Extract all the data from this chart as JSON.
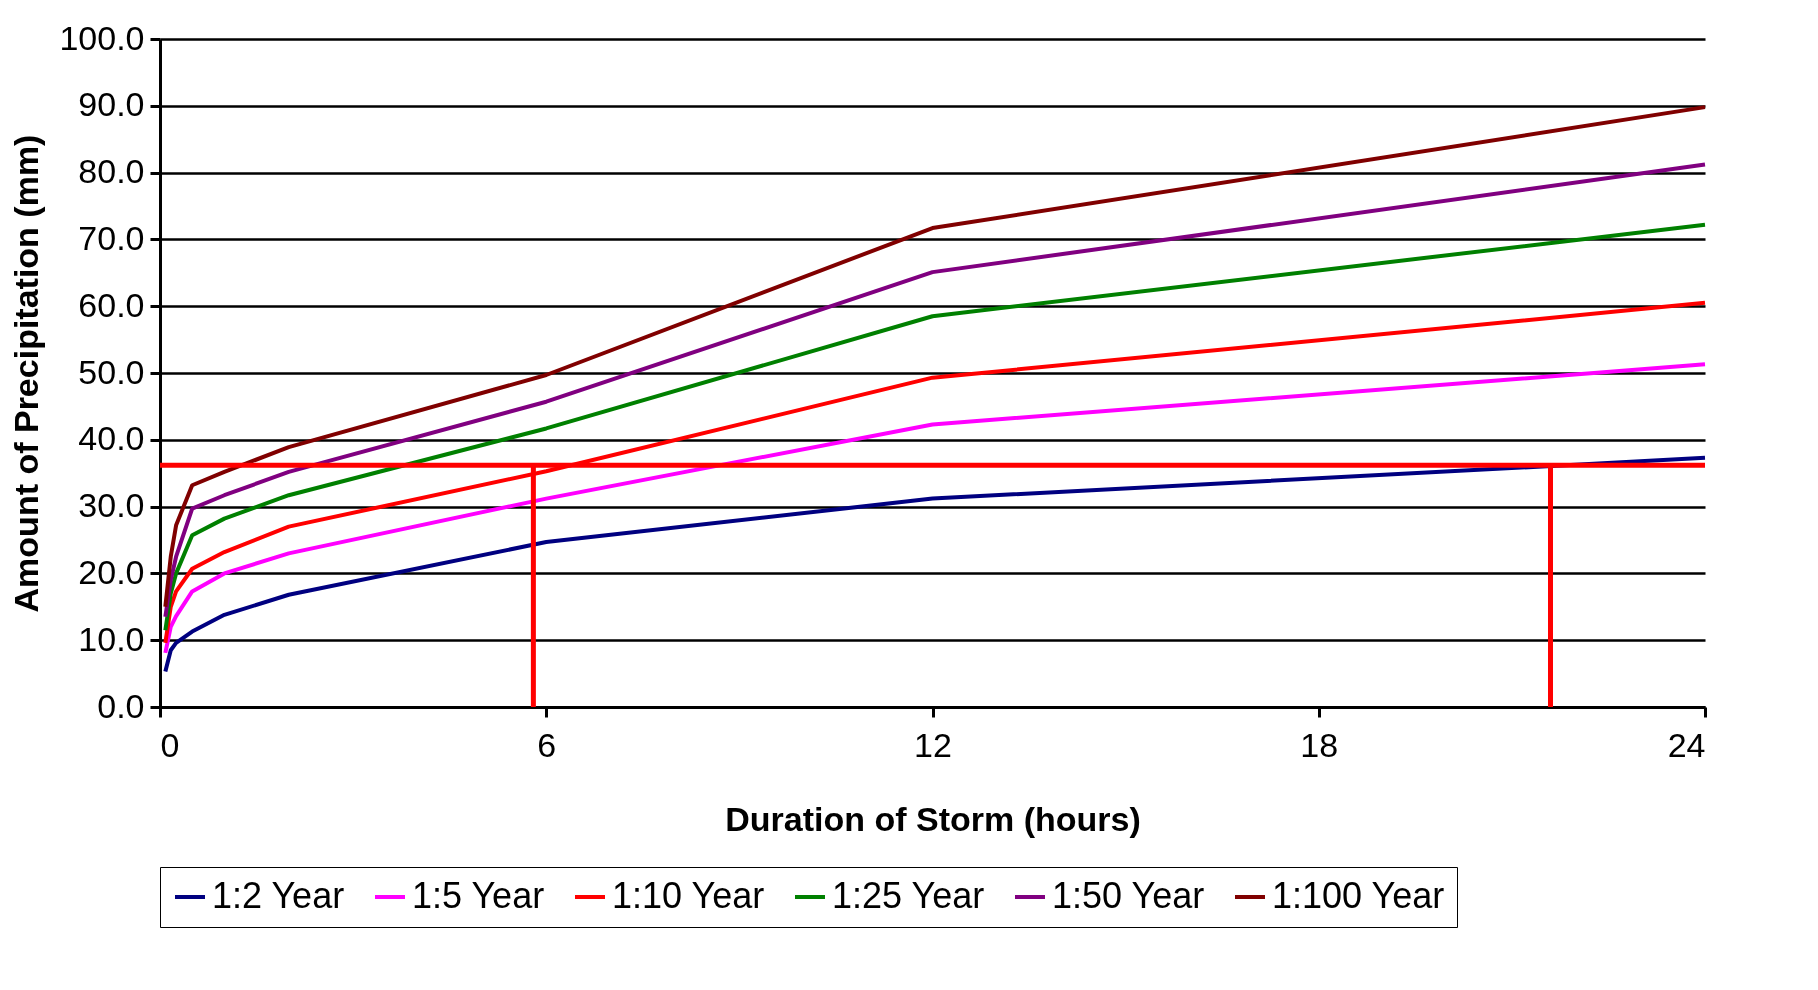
{
  "chart_data": {
    "type": "line",
    "xlabel": "Duration of Storm (hours)",
    "ylabel": "Amount of Precipitation (mm)",
    "x": [
      0.083,
      0.167,
      0.25,
      0.5,
      1,
      2,
      6,
      12,
      24
    ],
    "series": [
      {
        "name": "1:2 Year",
        "color": "#000080",
        "values": [
          5.3,
          8.5,
          9.6,
          11.3,
          13.8,
          16.8,
          24.7,
          31.2,
          37.3
        ]
      },
      {
        "name": "1:5 Year",
        "color": "#ff00ff",
        "values": [
          8.1,
          12.0,
          13.6,
          17.3,
          20.0,
          23.0,
          31.2,
          42.3,
          51.3
        ]
      },
      {
        "name": "1:10 Year",
        "color": "#ff0000",
        "values": [
          9.6,
          15.0,
          17.3,
          20.7,
          23.2,
          27.0,
          35.3,
          49.3,
          60.5
        ]
      },
      {
        "name": "1:25 Year",
        "color": "#008000",
        "values": [
          11.5,
          17.0,
          20.0,
          25.7,
          28.2,
          31.7,
          41.7,
          58.5,
          72.2
        ]
      },
      {
        "name": "1:50 Year",
        "color": "#800080",
        "values": [
          13.5,
          19.0,
          22.5,
          29.7,
          31.7,
          35.2,
          45.7,
          65.1,
          81.2
        ]
      },
      {
        "name": "1:100 Year",
        "color": "#800000",
        "values": [
          15.0,
          22.5,
          27.2,
          33.2,
          35.2,
          38.9,
          49.7,
          71.7,
          89.8
        ]
      }
    ],
    "xlim": [
      0,
      24
    ],
    "xticks": [
      0,
      6,
      12,
      18,
      24
    ],
    "ylim": [
      0,
      100
    ],
    "yticks": [
      {
        "value": 0,
        "label": "0.0"
      },
      {
        "value": 10,
        "label": "10.0"
      },
      {
        "value": 20,
        "label": "20.0"
      },
      {
        "value": 30,
        "label": "30.0"
      },
      {
        "value": 40,
        "label": "40.0"
      },
      {
        "value": 50,
        "label": "50.0"
      },
      {
        "value": 60,
        "label": "60.0"
      },
      {
        "value": 70,
        "label": "70.0"
      },
      {
        "value": 80,
        "label": "80.0"
      },
      {
        "value": 90,
        "label": "90.0"
      },
      {
        "value": 100,
        "label": "100.0"
      }
    ],
    "ref_lines": [
      {
        "axis": "y",
        "value": 36.2,
        "color": "#ff0000"
      },
      {
        "axis": "x",
        "value": 5.8,
        "color": "#ff0000"
      },
      {
        "axis": "x",
        "value": 21.6,
        "color": "#ff0000"
      }
    ],
    "grid": "y",
    "legend": "bottom",
    "marker": "none",
    "line_style": "solid"
  }
}
